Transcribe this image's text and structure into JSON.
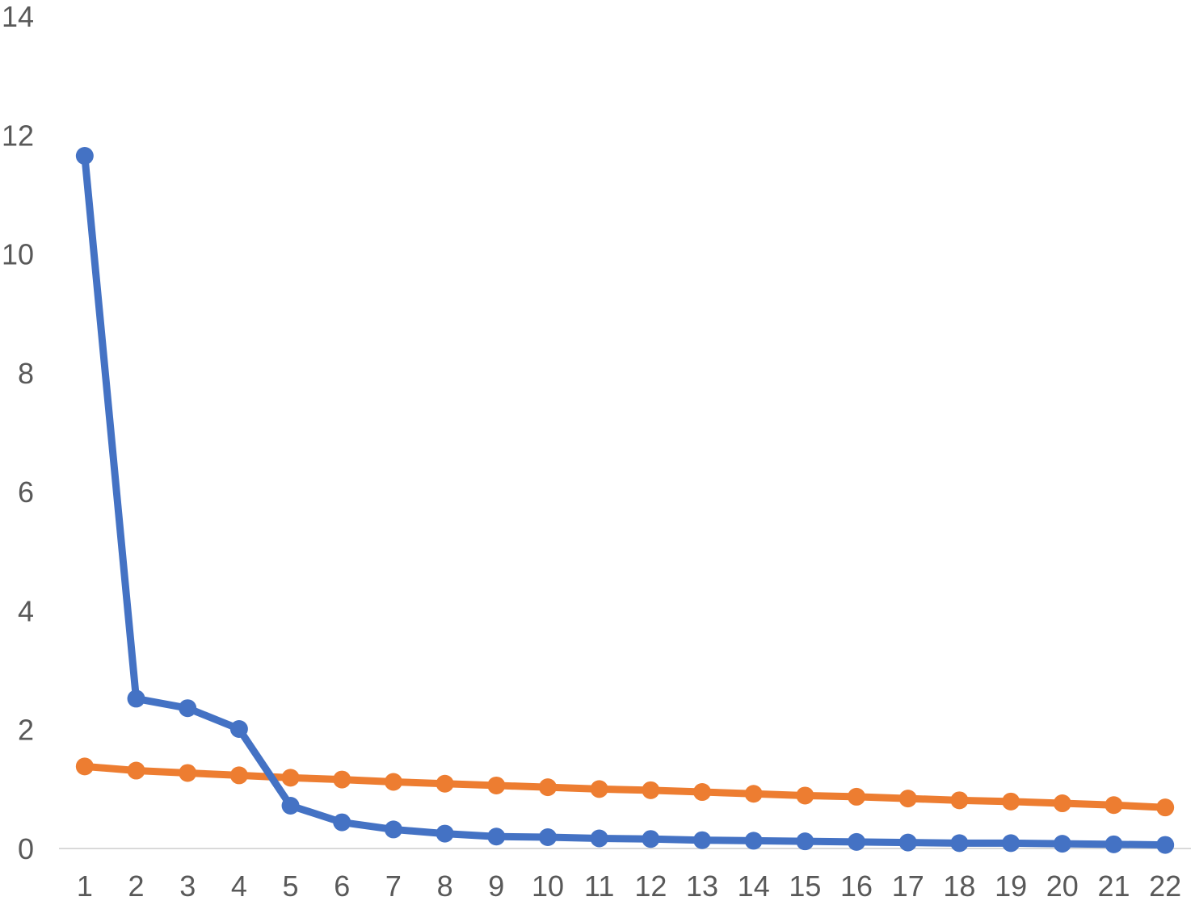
{
  "chart_data": {
    "type": "line",
    "title": "",
    "xlabel": "",
    "ylabel": "",
    "categories": [
      "1",
      "2",
      "3",
      "4",
      "5",
      "6",
      "7",
      "8",
      "9",
      "10",
      "11",
      "12",
      "13",
      "14",
      "15",
      "16",
      "17",
      "18",
      "19",
      "20",
      "21",
      "22"
    ],
    "ylim": [
      0,
      14
    ],
    "yticks": [
      "0",
      "2",
      "4",
      "6",
      "8",
      "10",
      "12",
      "14"
    ],
    "grid": false,
    "legend": "none",
    "series": [
      {
        "color": "#4472C4",
        "values": [
          11.65,
          2.52,
          2.36,
          2.01,
          0.72,
          0.44,
          0.32,
          0.25,
          0.2,
          0.19,
          0.17,
          0.16,
          0.14,
          0.13,
          0.12,
          0.11,
          0.1,
          0.09,
          0.09,
          0.08,
          0.07,
          0.06
        ]
      },
      {
        "color": "#ED7D31",
        "values": [
          1.38,
          1.31,
          1.27,
          1.23,
          1.19,
          1.16,
          1.12,
          1.09,
          1.06,
          1.03,
          1.0,
          0.98,
          0.95,
          0.92,
          0.89,
          0.87,
          0.84,
          0.81,
          0.79,
          0.76,
          0.73,
          0.69
        ]
      }
    ]
  }
}
